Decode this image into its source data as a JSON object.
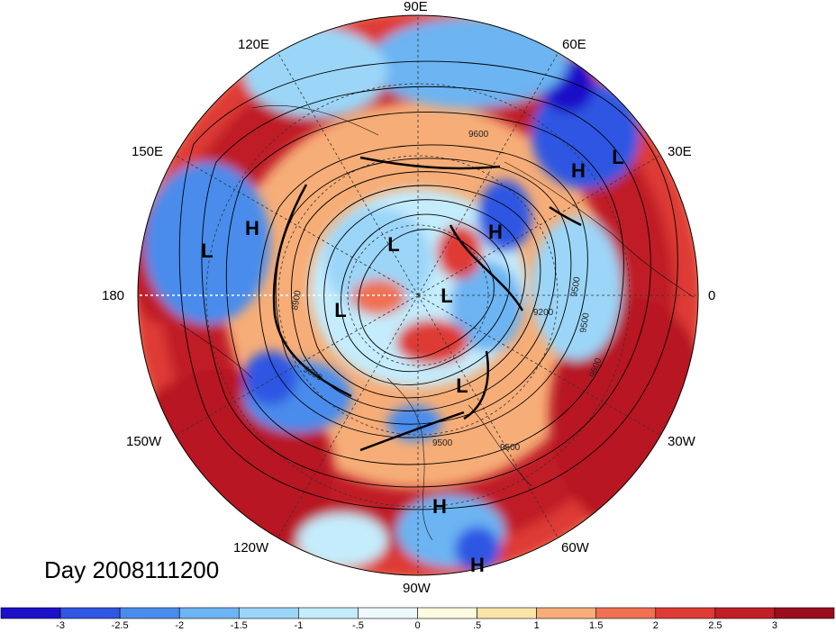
{
  "map": {
    "projection": "north-polar-stereographic",
    "longitude_labels": [
      "90E",
      "60E",
      "30E",
      "0",
      "30W",
      "60W",
      "90W",
      "120W",
      "150W",
      "180",
      "150E",
      "120E"
    ],
    "pressure_systems": [
      {
        "type": "H"
      },
      {
        "type": "L"
      },
      {
        "type": "H"
      },
      {
        "type": "L"
      },
      {
        "type": "L"
      },
      {
        "type": "H"
      },
      {
        "type": "L"
      },
      {
        "type": "L"
      },
      {
        "type": "L"
      },
      {
        "type": "H"
      },
      {
        "type": "H"
      }
    ],
    "contour_labels": [
      "9600",
      "9500",
      "9500",
      "9200",
      "8900",
      "9600",
      "9500",
      "9600",
      "9500"
    ]
  },
  "caption": "Day 2008111200",
  "colorbar": {
    "tick_labels": [
      "-3",
      "-2.5",
      "-2",
      "-1.5",
      "-1",
      "-.5",
      "0",
      ".5",
      "1",
      "1.5",
      "2",
      "2.5",
      "3"
    ],
    "colors": [
      "#1d10c9",
      "#2f57e3",
      "#4a8cec",
      "#6cb4f2",
      "#9bd6f8",
      "#c4ecfc",
      "#eef9fd",
      "#fdfbe0",
      "#fbe4a7",
      "#f6ad77",
      "#ee7152",
      "#de3b34",
      "#c01f26",
      "#9b0d1c"
    ]
  }
}
